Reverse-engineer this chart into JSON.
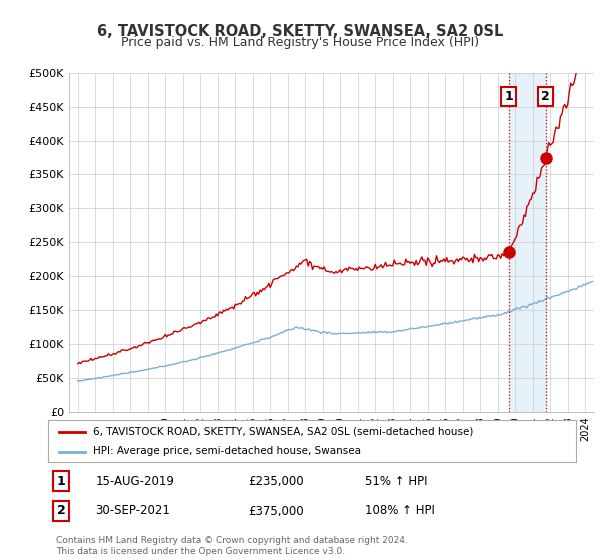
{
  "title": "6, TAVISTOCK ROAD, SKETTY, SWANSEA, SA2 0SL",
  "subtitle": "Price paid vs. HM Land Registry's House Price Index (HPI)",
  "ylabel_ticks": [
    "£0",
    "£50K",
    "£100K",
    "£150K",
    "£200K",
    "£250K",
    "£300K",
    "£350K",
    "£400K",
    "£450K",
    "£500K"
  ],
  "ytick_values": [
    0,
    50000,
    100000,
    150000,
    200000,
    250000,
    300000,
    350000,
    400000,
    450000,
    500000
  ],
  "ylim": [
    0,
    500000
  ],
  "legend_line1": "6, TAVISTOCK ROAD, SKETTY, SWANSEA, SA2 0SL (semi-detached house)",
  "legend_line2": "HPI: Average price, semi-detached house, Swansea",
  "sale1_label": "1",
  "sale1_date": "15-AUG-2019",
  "sale1_price": "£235,000",
  "sale1_hpi": "51% ↑ HPI",
  "sale1_year": 2019.62,
  "sale1_value": 235000,
  "sale2_label": "2",
  "sale2_date": "30-SEP-2021",
  "sale2_price": "£375,000",
  "sale2_hpi": "108% ↑ HPI",
  "sale2_year": 2021.75,
  "sale2_value": 375000,
  "footer": "Contains HM Land Registry data © Crown copyright and database right 2024.\nThis data is licensed under the Open Government Licence v3.0.",
  "hpi_color": "#7bafd4",
  "price_color": "#cc0000",
  "sale_marker_color": "#cc0000",
  "vline_color": "#cc0000",
  "background_color": "#ffffff",
  "grid_color": "#cccccc",
  "span_color": "#d6e8f5"
}
